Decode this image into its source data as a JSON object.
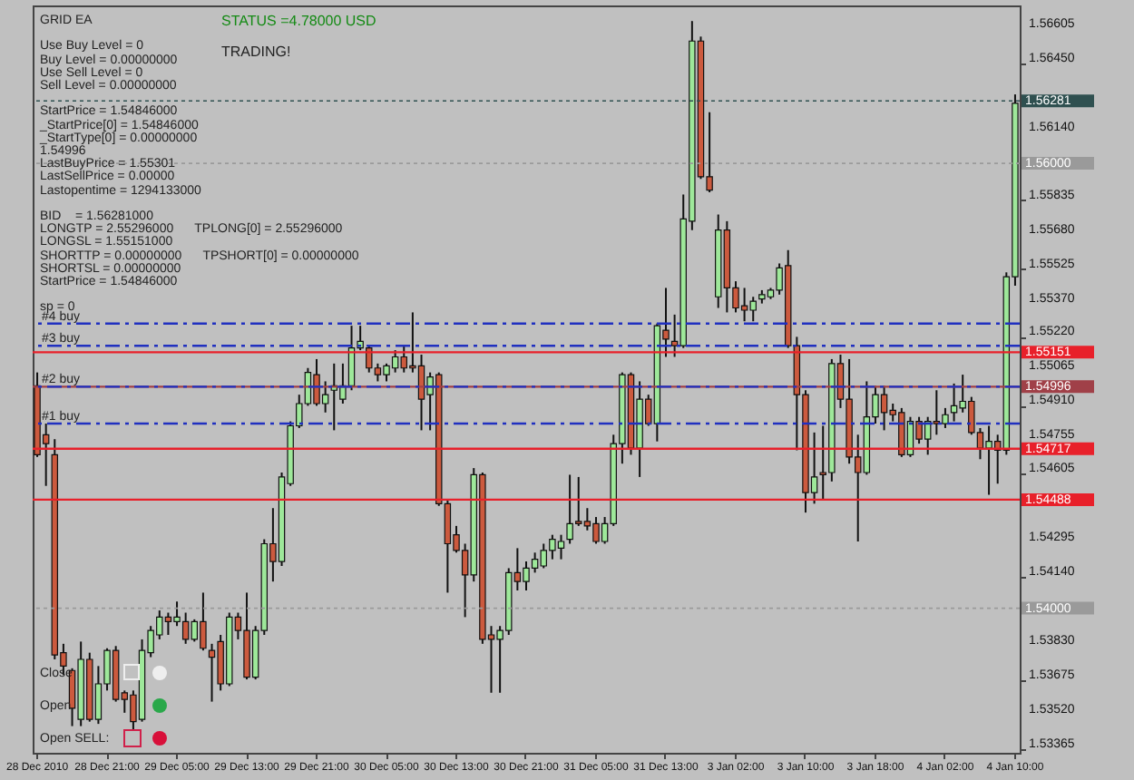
{
  "chart_data": {
    "type": "candlestick",
    "title": "STATUS =4.78000 USD",
    "subtitle": "TRADING!",
    "categories": [
      "28 Dec 2010",
      null,
      null,
      null,
      null,
      null,
      null,
      null,
      "28 Dec 21:00",
      null,
      null,
      null,
      null,
      null,
      null,
      null,
      "29 Dec 05:00",
      null,
      null,
      null,
      null,
      null,
      null,
      null,
      "29 Dec 13:00",
      null,
      null,
      null,
      null,
      null,
      null,
      null,
      "29 Dec 21:00",
      null,
      null,
      null,
      null,
      null,
      null,
      null,
      "30 Dec 05:00",
      null,
      null,
      null,
      null,
      null,
      null,
      null,
      "30 Dec 13:00",
      null,
      null,
      null,
      null,
      null,
      null,
      null,
      "30 Dec 21:00",
      null,
      null,
      null,
      null,
      null,
      null,
      null,
      "31 Dec 05:00",
      null,
      null,
      null,
      null,
      null,
      null,
      null,
      "31 Dec 13:00",
      null,
      null,
      null,
      null,
      null,
      null,
      null,
      "3 Jan 02:00",
      null,
      null,
      null,
      null,
      null,
      null,
      null,
      "3 Jan 10:00",
      null,
      null,
      null,
      null,
      null,
      null,
      null,
      "3 Jan 18:00",
      null,
      null,
      null,
      null,
      null,
      null,
      null,
      "4 Jan 02:00",
      null,
      null,
      null,
      null,
      null,
      null,
      null,
      "4 Jan 10:00"
    ],
    "ohlc": [
      [
        1.55,
        1.5506,
        1.5468,
        1.5469
      ],
      [
        1.5478,
        1.5483,
        1.5455,
        1.5474
      ],
      [
        1.5469,
        1.5476,
        1.5377,
        1.5379
      ],
      [
        1.538,
        1.5384,
        1.537,
        1.5374
      ],
      [
        1.5372,
        1.5373,
        1.5347,
        1.5355
      ],
      [
        1.535,
        1.5385,
        1.5347,
        1.5377
      ],
      [
        1.5377,
        1.538,
        1.5349,
        1.535
      ],
      [
        1.535,
        1.5374,
        1.5348,
        1.5366
      ],
      [
        1.5366,
        1.5382,
        1.5363,
        1.5381
      ],
      [
        1.5381,
        1.5383,
        1.5358,
        1.5359
      ],
      [
        1.5362,
        1.5363,
        1.5353,
        1.5359
      ],
      [
        1.5361,
        1.5363,
        1.5345,
        1.5349
      ],
      [
        1.535,
        1.5386,
        1.5349,
        1.5381
      ],
      [
        1.538,
        1.5392,
        1.5378,
        1.539
      ],
      [
        1.5388,
        1.5399,
        1.5386,
        1.5396
      ],
      [
        1.5396,
        1.5398,
        1.5388,
        1.5394
      ],
      [
        1.5394,
        1.5403,
        1.5392,
        1.5396
      ],
      [
        1.5394,
        1.5398,
        1.5384,
        1.5386
      ],
      [
        1.5386,
        1.5395,
        1.5385,
        1.5394
      ],
      [
        1.5394,
        1.5407,
        1.5381,
        1.5382
      ],
      [
        1.5381,
        1.5384,
        1.5358,
        1.5378
      ],
      [
        1.5385,
        1.5388,
        1.5363,
        1.5366
      ],
      [
        1.5366,
        1.5398,
        1.5365,
        1.5396
      ],
      [
        1.5396,
        1.5398,
        1.5386,
        1.539
      ],
      [
        1.539,
        1.5407,
        1.5368,
        1.5369
      ],
      [
        1.5369,
        1.5392,
        1.5368,
        1.539
      ],
      [
        1.539,
        1.5431,
        1.5388,
        1.5429
      ],
      [
        1.5429,
        1.5445,
        1.5412,
        1.5421
      ],
      [
        1.5421,
        1.5461,
        1.5419,
        1.5459
      ],
      [
        1.5456,
        1.5484,
        1.5455,
        1.5482
      ],
      [
        1.5482,
        1.5496,
        1.5481,
        1.5492
      ],
      [
        1.5492,
        1.5508,
        1.5491,
        1.5506
      ],
      [
        1.5505,
        1.5512,
        1.5491,
        1.5492
      ],
      [
        1.5492,
        1.5502,
        1.5488,
        1.5496
      ],
      [
        1.5498,
        1.551,
        1.548,
        1.55
      ],
      [
        1.5494,
        1.551,
        1.5492,
        1.55
      ],
      [
        1.55,
        1.5527,
        1.5498,
        1.5517
      ],
      [
        1.5517,
        1.5527,
        1.5516,
        1.552
      ],
      [
        1.5517,
        1.5518,
        1.5506,
        1.5508
      ],
      [
        1.5508,
        1.551,
        1.5502,
        1.5505
      ],
      [
        1.5505,
        1.551,
        1.5502,
        1.5509
      ],
      [
        1.5508,
        1.5516,
        1.5506,
        1.5513
      ],
      [
        1.5513,
        1.5518,
        1.5506,
        1.5508
      ],
      [
        1.5509,
        1.5533,
        1.5506,
        1.5508
      ],
      [
        1.5509,
        1.5514,
        1.548,
        1.5494
      ],
      [
        1.5496,
        1.5506,
        1.548,
        1.5504
      ],
      [
        1.5505,
        1.5506,
        1.5446,
        1.5447
      ],
      [
        1.5447,
        1.5449,
        1.5407,
        1.5429
      ],
      [
        1.5433,
        1.5437,
        1.5425,
        1.5426
      ],
      [
        1.5426,
        1.5429,
        1.5396,
        1.5415
      ],
      [
        1.5415,
        1.5463,
        1.5412,
        1.546
      ],
      [
        1.546,
        1.5461,
        1.5384,
        1.5386
      ],
      [
        1.5388,
        1.5392,
        1.5362,
        1.5386
      ],
      [
        1.5386,
        1.5392,
        1.5362,
        1.539
      ],
      [
        1.539,
        1.5418,
        1.5388,
        1.5416
      ],
      [
        1.5416,
        1.5427,
        1.5408,
        1.5412
      ],
      [
        1.5412,
        1.5421,
        1.5408,
        1.5418
      ],
      [
        1.5418,
        1.5425,
        1.5416,
        1.5422
      ],
      [
        1.5419,
        1.5429,
        1.5418,
        1.5426
      ],
      [
        1.5426,
        1.5433,
        1.5422,
        1.5431
      ],
      [
        1.5427,
        1.5433,
        1.5422,
        1.543
      ],
      [
        1.5431,
        1.546,
        1.5429,
        1.5438
      ],
      [
        1.5439,
        1.5459,
        1.5437,
        1.5438
      ],
      [
        1.5439,
        1.5445,
        1.5435,
        1.5437
      ],
      [
        1.5438,
        1.5441,
        1.5429,
        1.543
      ],
      [
        1.543,
        1.5441,
        1.5429,
        1.5438
      ],
      [
        1.5438,
        1.5478,
        1.5437,
        1.5474
      ],
      [
        1.5474,
        1.5506,
        1.5465,
        1.5505
      ],
      [
        1.5505,
        1.5506,
        1.5469,
        1.5472
      ],
      [
        1.5472,
        1.5502,
        1.5459,
        1.5494
      ],
      [
        1.5494,
        1.5496,
        1.5482,
        1.5483
      ],
      [
        1.5483,
        1.5528,
        1.5475,
        1.5527
      ],
      [
        1.5525,
        1.5544,
        1.5513,
        1.5521
      ],
      [
        1.552,
        1.5532,
        1.5513,
        1.5518
      ],
      [
        1.5518,
        1.5586,
        1.5517,
        1.5575
      ],
      [
        1.5574,
        1.5664,
        1.557,
        1.5655
      ],
      [
        1.5655,
        1.5657,
        1.5593,
        1.5594
      ],
      [
        1.5594,
        1.5623,
        1.5587,
        1.5588
      ],
      [
        1.554,
        1.5577,
        1.5535,
        1.557
      ],
      [
        1.557,
        1.5574,
        1.5533,
        1.5544
      ],
      [
        1.5544,
        1.5547,
        1.5533,
        1.5535
      ],
      [
        1.5536,
        1.5544,
        1.5529,
        1.5534
      ],
      [
        1.5534,
        1.554,
        1.5529,
        1.5538
      ],
      [
        1.5539,
        1.5543,
        1.5537,
        1.5541
      ],
      [
        1.554,
        1.5544,
        1.5539,
        1.5543
      ],
      [
        1.5543,
        1.5555,
        1.5541,
        1.5553
      ],
      [
        1.5554,
        1.5561,
        1.5517,
        1.5518
      ],
      [
        1.5518,
        1.5522,
        1.5471,
        1.5496
      ],
      [
        1.5496,
        1.5498,
        1.5443,
        1.5452
      ],
      [
        1.5452,
        1.5479,
        1.5447,
        1.5459
      ],
      [
        1.5461,
        1.5482,
        1.5449,
        1.546
      ],
      [
        1.5461,
        1.5512,
        1.5457,
        1.551
      ],
      [
        1.551,
        1.5514,
        1.549,
        1.5494
      ],
      [
        1.5494,
        1.5512,
        1.5465,
        1.5468
      ],
      [
        1.5468,
        1.5478,
        1.543,
        1.5461
      ],
      [
        1.5461,
        1.5502,
        1.546,
        1.5486
      ],
      [
        1.5486,
        1.55,
        1.5483,
        1.5496
      ],
      [
        1.5496,
        1.55,
        1.548,
        1.5488
      ],
      [
        1.5489,
        1.5492,
        1.5484,
        1.5487
      ],
      [
        1.5488,
        1.549,
        1.5468,
        1.5469
      ],
      [
        1.5469,
        1.5486,
        1.5468,
        1.5484
      ],
      [
        1.5484,
        1.5486,
        1.5474,
        1.5476
      ],
      [
        1.5476,
        1.5486,
        1.5469,
        1.5484
      ],
      [
        1.5484,
        1.5498,
        1.5478,
        1.5483
      ],
      [
        1.5483,
        1.549,
        1.5481,
        1.5487
      ],
      [
        1.5488,
        1.5501,
        1.5484,
        1.5491
      ],
      [
        1.549,
        1.5505,
        1.5488,
        1.5493
      ],
      [
        1.5493,
        1.5495,
        1.5478,
        1.5479
      ],
      [
        1.5479,
        1.5481,
        1.5467,
        1.5472
      ],
      [
        1.5472,
        1.5482,
        1.5451,
        1.5475
      ],
      [
        1.5475,
        1.5478,
        1.5456,
        1.5471
      ],
      [
        1.5471,
        1.5551,
        1.5469,
        1.5549
      ],
      [
        1.5549,
        1.5631,
        1.5545,
        1.5627
      ]
    ],
    "ylim": [
      1.5335,
      1.5671
    ],
    "yticks": [
      1.56605,
      {
        "value": 1.5645,
        "label": "1.56450"
      },
      {
        "value": 1.5614,
        "label": "1.56140"
      },
      1.55835,
      {
        "value": 1.5568,
        "label": "1.55680"
      },
      1.55525,
      {
        "value": 1.5537,
        "label": "1.55370"
      },
      {
        "value": 1.5522,
        "label": "1.55220"
      },
      1.55065,
      {
        "value": 1.5491,
        "label": "1.54910"
      },
      1.54755,
      1.54605,
      1.54295,
      {
        "value": 1.5414,
        "label": "1.54140"
      },
      {
        "value": 1.5383,
        "label": "1.53830"
      },
      1.53675,
      {
        "value": 1.5352,
        "label": "1.53520"
      },
      1.53365
    ],
    "ref_lines": [
      {
        "axis": "y",
        "value": 1.56281,
        "label": "1.56281",
        "color": "#2f5050",
        "line_style": "dotted"
      },
      {
        "axis": "y",
        "value": 1.56,
        "label": "1.56000",
        "color": "#9a9a9a",
        "line_style": "dotted"
      },
      {
        "axis": "y",
        "value": 1.54,
        "label": "1.54000",
        "color": "#9a9a9a",
        "line_style": "dotted"
      },
      {
        "axis": "y",
        "value": 1.55151,
        "label": "1.55151",
        "color": "#e8202a",
        "line_style": "solid"
      },
      {
        "axis": "y",
        "value": 1.54996,
        "label": "1.54996",
        "color": "#a04048",
        "line_style": "solid"
      },
      {
        "axis": "y",
        "value": 1.54717,
        "label": "1.54717",
        "color": "#e8202a",
        "line_style": "solid"
      },
      {
        "axis": "y",
        "value": 1.54488,
        "label": "1.54488",
        "color": "#e8202a",
        "line_style": "solid"
      },
      {
        "axis": "y",
        "value": 1.5528,
        "label": "#4 buy",
        "color": "#2030c0",
        "line_style": "dashed"
      },
      {
        "axis": "y",
        "value": 1.5518,
        "label": "#3 buy",
        "color": "#2030c0",
        "line_style": "dashed"
      },
      {
        "axis": "y",
        "value": 1.54996,
        "label": "#2 buy",
        "color": "#2030c0",
        "line_style": "dashed"
      },
      {
        "axis": "y",
        "value": 1.5483,
        "label": "#1 buy",
        "color": "#2030c0",
        "line_style": "dashed"
      }
    ],
    "annotations": [
      "GRID EA",
      "Use Buy Level = 0",
      "Buy Level = 0.00000000",
      "Use Sell Level = 0",
      "Sell Level = 0.00000000",
      "StartPrice = 1.54846000",
      "_StartPrice[0] = 1.54846000",
      "_StartType[0] = 0.00000000",
      "1.54996",
      "LastBuyPrice = 1.55301",
      "LastSellPrice = 0.00000",
      "Lastopentime = 1294133000",
      "BID    = 1.56281000",
      "LONGTP = 2.55296000      TPLONG[0] = 2.55296000",
      "LONGSL = 1.55151000",
      "SHORTTP = 0.00000000      TPSHORT[0] = 0.00000000",
      "SHORTSL = 0.00000000",
      "StartPrice = 1.54846000",
      "sp = 0",
      "Close",
      "Open",
      "Open SELL:"
    ]
  }
}
